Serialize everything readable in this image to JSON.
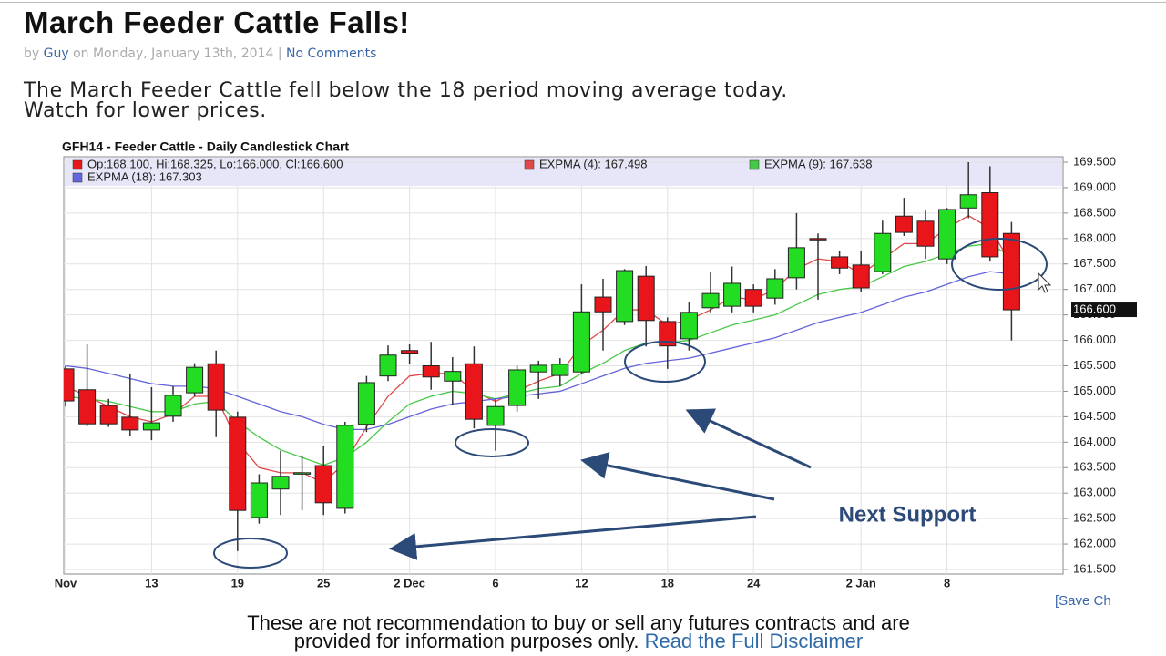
{
  "header": {
    "title": "March Feeder Cattle Falls!",
    "by": "by",
    "author": "Guy",
    "date": "on Monday, January 13th, 2014",
    "separator": "|",
    "comments": "No Comments"
  },
  "body": {
    "line1": "The March Feeder Cattle fell below the 18 period moving average today.",
    "line2": "Watch for lower prices."
  },
  "chart_data": {
    "type": "candlestick",
    "title": "GFH14 - Feeder Cattle - Daily Candlestick Chart",
    "ohlc_legend": "Op:168.100, Hi:168.325, Lo:166.000, Cl:166.600",
    "up_color": "#22dd22",
    "down_color": "#e8161b",
    "x": [
      "Nov",
      null,
      null,
      null,
      "13",
      null,
      null,
      null,
      "19",
      null,
      null,
      null,
      "25",
      null,
      null,
      null,
      "2 Dec",
      null,
      null,
      null,
      "6",
      null,
      null,
      null,
      "12",
      null,
      null,
      null,
      "18",
      null,
      null,
      null,
      "24",
      null,
      null,
      null,
      null,
      "2 Jan",
      null,
      null,
      null,
      "8",
      null,
      null,
      null
    ],
    "open": [
      165.44,
      165.03,
      164.72,
      164.49,
      164.24,
      164.51,
      164.97,
      165.54,
      164.49,
      162.52,
      163.08,
      163.38,
      163.54,
      162.7,
      164.35,
      165.3,
      165.8,
      165.5,
      165.2,
      165.54,
      164.33,
      164.72,
      165.38,
      165.31,
      165.38,
      166.85,
      166.37,
      167.26,
      166.37,
      166.03,
      166.64,
      166.67,
      167.0,
      166.83,
      167.23,
      168.0,
      167.64,
      167.48,
      167.35,
      168.44,
      168.34,
      167.6,
      168.6,
      168.9,
      168.1
    ],
    "high": [
      165.5,
      165.92,
      164.85,
      165.35,
      165.08,
      165.1,
      165.55,
      165.8,
      164.6,
      163.37,
      163.83,
      163.74,
      163.92,
      164.4,
      165.3,
      165.9,
      165.92,
      165.97,
      165.67,
      165.88,
      164.85,
      165.5,
      165.6,
      165.65,
      167.1,
      167.21,
      167.4,
      167.46,
      166.45,
      166.75,
      167.35,
      167.45,
      167.1,
      167.4,
      168.5,
      168.1,
      167.76,
      167.75,
      168.35,
      168.8,
      168.55,
      168.6,
      169.5,
      169.42,
      168.325
    ],
    "low": [
      164.7,
      164.31,
      164.3,
      164.13,
      164.04,
      164.4,
      164.9,
      164.1,
      161.86,
      162.4,
      162.57,
      162.66,
      162.57,
      162.6,
      164.2,
      165.2,
      165.53,
      165.03,
      164.72,
      164.27,
      163.83,
      164.6,
      164.85,
      165.1,
      165.35,
      165.8,
      166.3,
      165.88,
      165.44,
      165.8,
      166.55,
      166.55,
      166.55,
      166.7,
      167.0,
      166.8,
      167.3,
      166.95,
      167.3,
      168.05,
      167.6,
      167.5,
      168.4,
      167.55,
      166.0
    ],
    "close": [
      164.81,
      164.36,
      164.36,
      164.24,
      164.38,
      164.92,
      165.47,
      164.63,
      162.66,
      163.2,
      163.33,
      163.4,
      162.81,
      164.33,
      165.17,
      165.71,
      165.75,
      165.28,
      165.39,
      164.45,
      164.7,
      165.42,
      165.51,
      165.53,
      166.56,
      166.56,
      167.37,
      166.39,
      165.89,
      166.55,
      166.92,
      167.12,
      166.67,
      167.21,
      167.82,
      167.98,
      167.42,
      167.03,
      168.1,
      168.12,
      167.85,
      168.57,
      168.86,
      167.64,
      166.6
    ],
    "series": [
      {
        "name": "EXPMA (4): 167.498",
        "color": "#e04848",
        "values": [
          165.1,
          164.9,
          164.7,
          164.5,
          164.4,
          164.55,
          164.9,
          164.9,
          164.0,
          163.5,
          163.4,
          163.4,
          163.2,
          163.6,
          164.3,
          164.9,
          165.3,
          165.35,
          165.35,
          165.0,
          164.8,
          165.0,
          165.2,
          165.35,
          165.9,
          166.2,
          166.6,
          166.6,
          166.3,
          166.4,
          166.6,
          166.85,
          166.8,
          167.0,
          167.4,
          167.6,
          167.55,
          167.3,
          167.6,
          167.9,
          167.9,
          168.2,
          168.45,
          168.2,
          167.498
        ]
      },
      {
        "name": "EXPMA (9): 167.638",
        "color": "#48c848",
        "values": [
          164.9,
          164.85,
          164.8,
          164.7,
          164.6,
          164.6,
          164.75,
          164.8,
          164.4,
          164.1,
          163.85,
          163.7,
          163.55,
          163.7,
          164.0,
          164.4,
          164.75,
          164.9,
          165.0,
          164.95,
          164.85,
          164.95,
          165.05,
          165.1,
          165.35,
          165.55,
          165.8,
          165.95,
          165.95,
          166.0,
          166.15,
          166.3,
          166.4,
          166.5,
          166.7,
          166.9,
          167.0,
          167.05,
          167.25,
          167.45,
          167.55,
          167.7,
          167.85,
          167.9,
          167.638
        ]
      },
      {
        "name": "EXPMA (18): 167.303",
        "color": "#6464dc",
        "values": [
          165.5,
          165.45,
          165.35,
          165.25,
          165.15,
          165.1,
          165.1,
          165.05,
          164.9,
          164.75,
          164.6,
          164.5,
          164.35,
          164.25,
          164.25,
          164.35,
          164.5,
          164.65,
          164.75,
          164.8,
          164.85,
          164.9,
          164.95,
          165.0,
          165.15,
          165.3,
          165.45,
          165.55,
          165.6,
          165.65,
          165.75,
          165.85,
          165.95,
          166.05,
          166.2,
          166.35,
          166.45,
          166.55,
          166.7,
          166.85,
          166.95,
          167.1,
          167.25,
          167.35,
          167.303
        ]
      }
    ],
    "ylim": [
      161.3,
      169.7
    ],
    "yticks": [
      {
        "value": 161.5,
        "label": "161.500"
      },
      {
        "value": 162,
        "label": "162.000"
      },
      {
        "value": 162.5,
        "label": "162.500"
      },
      {
        "value": 163,
        "label": "163.000"
      },
      {
        "value": 163.5,
        "label": "163.500"
      },
      {
        "value": 164,
        "label": "164.000"
      },
      {
        "value": 164.5,
        "label": "164.500"
      },
      {
        "value": 165,
        "label": "165.000"
      },
      {
        "value": 165.5,
        "label": "165.500"
      },
      {
        "value": 166,
        "label": "166.000"
      },
      {
        "value": 166.5,
        "label": "166.500"
      },
      {
        "value": 167,
        "label": "167.000"
      },
      {
        "value": 167.5,
        "label": "167.500"
      },
      {
        "value": 168,
        "label": "168.000"
      },
      {
        "value": 168.5,
        "label": "168.500"
      },
      {
        "value": 169,
        "label": "169.000"
      },
      {
        "value": 169.5,
        "label": "169.500"
      }
    ],
    "last_price": {
      "value": 166.6,
      "label": "166.600"
    },
    "grid": true,
    "annotation": "Next Support",
    "save_link": "[Save Ch"
  },
  "footer": {
    "line1": "These are not recommendation to buy or sell any futures contracts and are",
    "line2": "provided for information purposes only.",
    "link": "Read the Full Disclaimer"
  }
}
